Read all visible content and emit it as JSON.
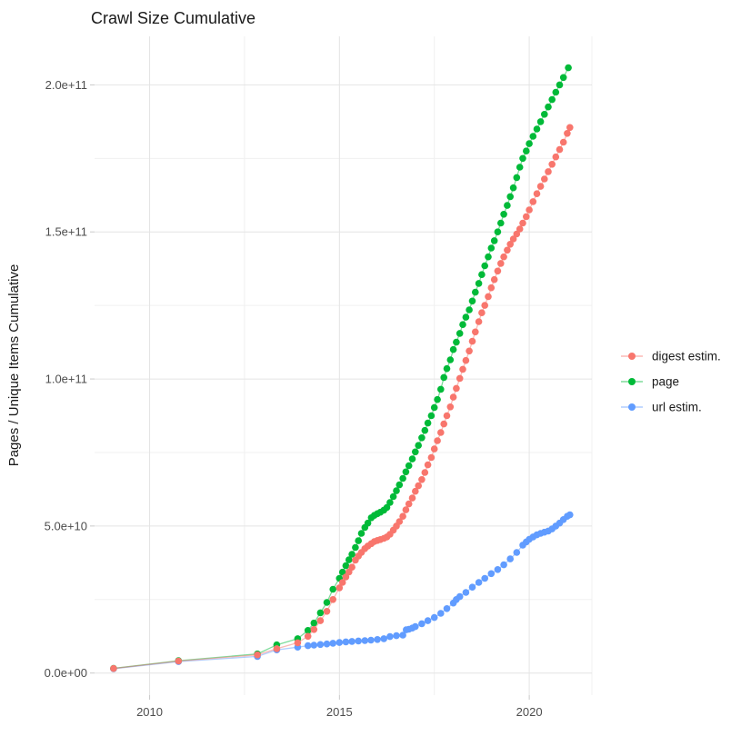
{
  "chart_data": {
    "type": "scatter",
    "title": "Crawl Size Cumulative",
    "xlabel": "",
    "ylabel": "Pages / Unique Items Cumulative",
    "unit": "values in billions (1e9) of pages / unique items",
    "grid": true,
    "legend_position": "right",
    "xlim": [
      2008.55,
      2021.65
    ],
    "ylim": [
      -7.5,
      216.5
    ],
    "x_ticks": [
      {
        "v": 2010,
        "label": "2010"
      },
      {
        "v": 2015,
        "label": "2015"
      },
      {
        "v": 2020,
        "label": "2020"
      }
    ],
    "x_minor": [
      2012.5,
      2017.5
    ],
    "y_ticks": [
      {
        "v": 0,
        "label": "0.0e+00"
      },
      {
        "v": 50,
        "label": "5.0e+10"
      },
      {
        "v": 100,
        "label": "1.0e+11"
      },
      {
        "v": 150,
        "label": "1.5e+11"
      },
      {
        "v": 200,
        "label": "2.0e+11"
      }
    ],
    "y_minor": [
      25,
      75,
      125,
      175
    ],
    "series": [
      {
        "name": "digest estim.",
        "color": "#F8766D",
        "points": [
          [
            2009.05,
            1.55
          ],
          [
            2010.76,
            4.1
          ],
          [
            2012.84,
            6.2
          ],
          [
            2013.35,
            8.3
          ],
          [
            2013.9,
            10.3
          ],
          [
            2014.17,
            12.5
          ],
          [
            2014.33,
            14.8
          ],
          [
            2014.5,
            17.8
          ],
          [
            2014.67,
            21.0
          ],
          [
            2014.83,
            25.0
          ],
          [
            2015.0,
            29.0
          ],
          [
            2015.08,
            30.8
          ],
          [
            2015.17,
            32.7
          ],
          [
            2015.25,
            34.4
          ],
          [
            2015.33,
            36.0
          ],
          [
            2015.42,
            38.4
          ],
          [
            2015.5,
            39.8
          ],
          [
            2015.58,
            41.0
          ],
          [
            2015.67,
            42.3
          ],
          [
            2015.75,
            43.2
          ],
          [
            2015.84,
            44.0
          ],
          [
            2015.92,
            44.7
          ],
          [
            2016.0,
            45.1
          ],
          [
            2016.08,
            45.4
          ],
          [
            2016.17,
            45.8
          ],
          [
            2016.25,
            46.3
          ],
          [
            2016.33,
            47.2
          ],
          [
            2016.42,
            48.6
          ],
          [
            2016.5,
            50.0
          ],
          [
            2016.58,
            51.5
          ],
          [
            2016.67,
            53.3
          ],
          [
            2016.75,
            55.5
          ],
          [
            2016.83,
            57.5
          ],
          [
            2016.92,
            59.5
          ],
          [
            2017.0,
            61.8
          ],
          [
            2017.08,
            63.7
          ],
          [
            2017.17,
            65.8
          ],
          [
            2017.25,
            68.2
          ],
          [
            2017.33,
            70.8
          ],
          [
            2017.42,
            73.3
          ],
          [
            2017.5,
            76.2
          ],
          [
            2017.58,
            79.0
          ],
          [
            2017.67,
            81.8
          ],
          [
            2017.75,
            84.7
          ],
          [
            2017.83,
            87.5
          ],
          [
            2017.92,
            90.5
          ],
          [
            2018.0,
            93.8
          ],
          [
            2018.08,
            96.8
          ],
          [
            2018.17,
            100.2
          ],
          [
            2018.25,
            103.3
          ],
          [
            2018.33,
            106.3
          ],
          [
            2018.42,
            109.5
          ],
          [
            2018.5,
            112.8
          ],
          [
            2018.58,
            116.0
          ],
          [
            2018.67,
            119.5
          ],
          [
            2018.75,
            122.5
          ],
          [
            2018.83,
            125.0
          ],
          [
            2018.92,
            128.0
          ],
          [
            2019.0,
            131.0
          ],
          [
            2019.08,
            133.8
          ],
          [
            2019.17,
            136.7
          ],
          [
            2019.25,
            139.3
          ],
          [
            2019.33,
            141.5
          ],
          [
            2019.42,
            143.8
          ],
          [
            2019.5,
            145.8
          ],
          [
            2019.58,
            147.6
          ],
          [
            2019.67,
            149.3
          ],
          [
            2019.75,
            151.0
          ],
          [
            2019.83,
            153.0
          ],
          [
            2019.92,
            155.2
          ],
          [
            2020.0,
            157.5
          ],
          [
            2020.1,
            160.3
          ],
          [
            2020.2,
            163.0
          ],
          [
            2020.3,
            165.5
          ],
          [
            2020.4,
            168.0
          ],
          [
            2020.5,
            170.5
          ],
          [
            2020.6,
            173.0
          ],
          [
            2020.7,
            175.5
          ],
          [
            2020.8,
            178.0
          ],
          [
            2020.9,
            180.5
          ],
          [
            2021.0,
            183.5
          ],
          [
            2021.07,
            185.5
          ]
        ]
      },
      {
        "name": "page",
        "color": "#00BA38",
        "points": [
          [
            2009.05,
            1.6
          ],
          [
            2010.76,
            4.2
          ],
          [
            2012.84,
            6.5
          ],
          [
            2013.35,
            9.6
          ],
          [
            2013.9,
            11.7
          ],
          [
            2014.17,
            14.5
          ],
          [
            2014.33,
            17.0
          ],
          [
            2014.5,
            20.5
          ],
          [
            2014.67,
            24.0
          ],
          [
            2014.83,
            28.5
          ],
          [
            2015.0,
            32.2
          ],
          [
            2015.08,
            34.3
          ],
          [
            2015.17,
            36.5
          ],
          [
            2015.25,
            38.5
          ],
          [
            2015.33,
            40.4
          ],
          [
            2015.42,
            42.7
          ],
          [
            2015.5,
            45.0
          ],
          [
            2015.58,
            47.5
          ],
          [
            2015.67,
            49.5
          ],
          [
            2015.75,
            51.0
          ],
          [
            2015.84,
            52.8
          ],
          [
            2015.92,
            53.6
          ],
          [
            2016.0,
            54.2
          ],
          [
            2016.08,
            54.7
          ],
          [
            2016.17,
            55.4
          ],
          [
            2016.25,
            56.3
          ],
          [
            2016.33,
            58.0
          ],
          [
            2016.42,
            60.0
          ],
          [
            2016.5,
            62.0
          ],
          [
            2016.58,
            64.0
          ],
          [
            2016.67,
            66.2
          ],
          [
            2016.75,
            68.4
          ],
          [
            2016.83,
            70.5
          ],
          [
            2016.92,
            72.8
          ],
          [
            2017.0,
            75.2
          ],
          [
            2017.08,
            77.4
          ],
          [
            2017.17,
            80.0
          ],
          [
            2017.25,
            82.5
          ],
          [
            2017.33,
            85.0
          ],
          [
            2017.42,
            87.5
          ],
          [
            2017.5,
            90.3
          ],
          [
            2017.58,
            93.0
          ],
          [
            2017.67,
            96.5
          ],
          [
            2017.75,
            100.5
          ],
          [
            2017.83,
            103.5
          ],
          [
            2017.92,
            106.5
          ],
          [
            2018.0,
            110.0
          ],
          [
            2018.08,
            112.5
          ],
          [
            2018.17,
            115.5
          ],
          [
            2018.25,
            118.5
          ],
          [
            2018.33,
            121.0
          ],
          [
            2018.42,
            123.5
          ],
          [
            2018.5,
            126.5
          ],
          [
            2018.58,
            129.5
          ],
          [
            2018.67,
            132.5
          ],
          [
            2018.75,
            135.5
          ],
          [
            2018.83,
            138.5
          ],
          [
            2018.92,
            141.5
          ],
          [
            2019.0,
            144.5
          ],
          [
            2019.08,
            147.0
          ],
          [
            2019.17,
            150.0
          ],
          [
            2019.25,
            153.0
          ],
          [
            2019.33,
            156.0
          ],
          [
            2019.42,
            159.0
          ],
          [
            2019.5,
            162.0
          ],
          [
            2019.58,
            165.0
          ],
          [
            2019.67,
            168.5
          ],
          [
            2019.75,
            172.0
          ],
          [
            2019.83,
            175.0
          ],
          [
            2019.92,
            177.5
          ],
          [
            2020.0,
            180.0
          ],
          [
            2020.1,
            182.5
          ],
          [
            2020.2,
            185.0
          ],
          [
            2020.3,
            187.5
          ],
          [
            2020.4,
            190.0
          ],
          [
            2020.5,
            192.5
          ],
          [
            2020.6,
            195.0
          ],
          [
            2020.7,
            197.5
          ],
          [
            2020.8,
            200.0
          ],
          [
            2020.9,
            202.5
          ],
          [
            2021.03,
            205.8
          ]
        ]
      },
      {
        "name": "url estim.",
        "color": "#619CFF",
        "points": [
          [
            2009.05,
            1.5
          ],
          [
            2010.76,
            3.9
          ],
          [
            2012.84,
            5.65
          ],
          [
            2013.35,
            7.9
          ],
          [
            2013.9,
            8.8
          ],
          [
            2014.17,
            9.3
          ],
          [
            2014.33,
            9.5
          ],
          [
            2014.5,
            9.7
          ],
          [
            2014.67,
            9.9
          ],
          [
            2014.83,
            10.15
          ],
          [
            2015.0,
            10.4
          ],
          [
            2015.17,
            10.6
          ],
          [
            2015.33,
            10.75
          ],
          [
            2015.5,
            10.9
          ],
          [
            2015.67,
            11.05
          ],
          [
            2015.83,
            11.2
          ],
          [
            2016.0,
            11.4
          ],
          [
            2016.17,
            11.7
          ],
          [
            2016.33,
            12.4
          ],
          [
            2016.5,
            12.7
          ],
          [
            2016.67,
            12.9
          ],
          [
            2016.76,
            14.7
          ],
          [
            2016.83,
            14.9
          ],
          [
            2016.92,
            15.3
          ],
          [
            2017.0,
            15.8
          ],
          [
            2017.17,
            16.8
          ],
          [
            2017.33,
            17.8
          ],
          [
            2017.5,
            18.9
          ],
          [
            2017.67,
            20.3
          ],
          [
            2017.83,
            21.9
          ],
          [
            2018.0,
            23.8
          ],
          [
            2018.08,
            25.0
          ],
          [
            2018.17,
            26.0
          ],
          [
            2018.33,
            27.4
          ],
          [
            2018.5,
            29.2
          ],
          [
            2018.67,
            30.8
          ],
          [
            2018.83,
            32.2
          ],
          [
            2019.0,
            33.8
          ],
          [
            2019.17,
            35.2
          ],
          [
            2019.33,
            36.8
          ],
          [
            2019.5,
            38.8
          ],
          [
            2019.67,
            41.0
          ],
          [
            2019.83,
            43.5
          ],
          [
            2019.92,
            44.6
          ],
          [
            2020.0,
            45.5
          ],
          [
            2020.1,
            46.3
          ],
          [
            2020.2,
            47.0
          ],
          [
            2020.3,
            47.5
          ],
          [
            2020.4,
            47.9
          ],
          [
            2020.5,
            48.3
          ],
          [
            2020.6,
            49.0
          ],
          [
            2020.7,
            50.0
          ],
          [
            2020.8,
            51.0
          ],
          [
            2020.9,
            52.2
          ],
          [
            2021.0,
            53.3
          ],
          [
            2021.07,
            53.8
          ]
        ]
      }
    ]
  }
}
